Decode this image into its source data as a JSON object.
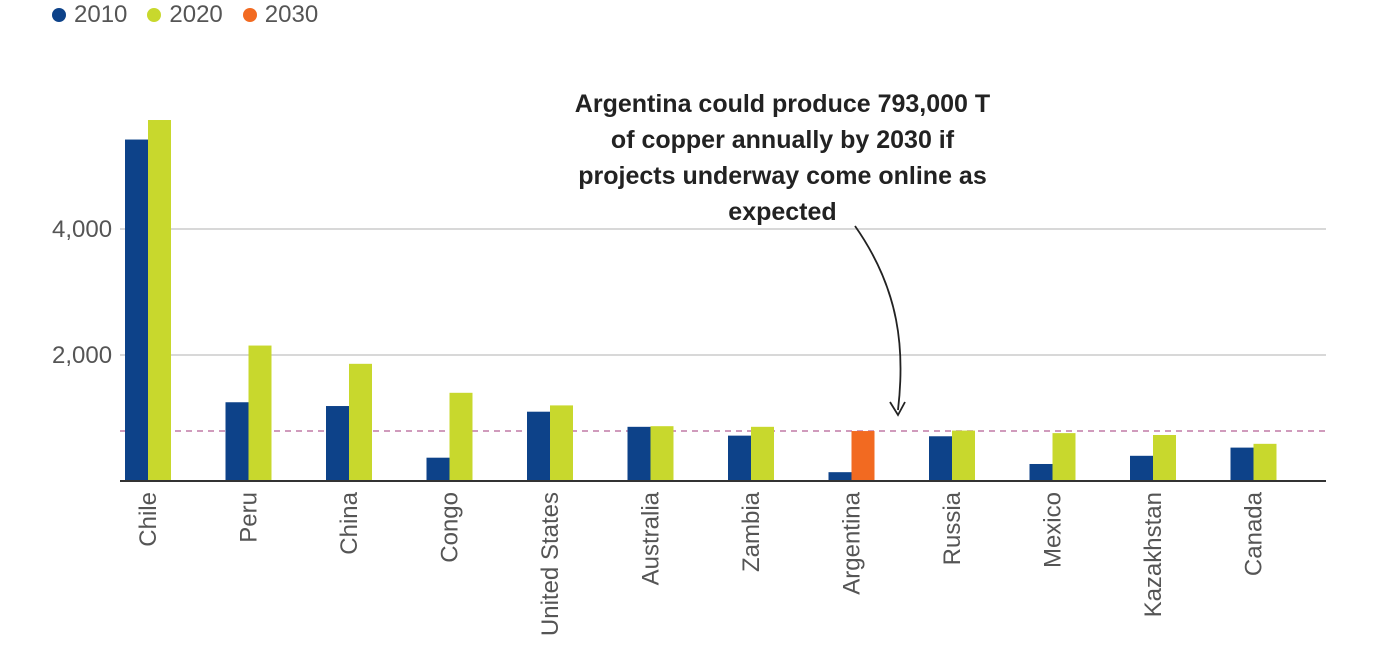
{
  "chart_data": {
    "type": "bar",
    "categories": [
      "Chile",
      "Peru",
      "China",
      "Congo",
      "United States",
      "Australia",
      "Zambia",
      "Argentina",
      "Russia",
      "Mexico",
      "Kazakhstan",
      "Canada"
    ],
    "series": [
      {
        "name": "2010",
        "color": "#0d4289",
        "values": [
          5420,
          1250,
          1190,
          370,
          1100,
          860,
          720,
          140,
          710,
          270,
          400,
          530
        ]
      },
      {
        "name": "2020",
        "color": "#c8d82d",
        "values": [
          5730,
          2150,
          1860,
          1400,
          1200,
          870,
          860,
          null,
          800,
          760,
          730,
          590
        ]
      },
      {
        "name": "2030",
        "color": "#f26a21",
        "values": [
          null,
          null,
          null,
          null,
          null,
          null,
          null,
          793,
          null,
          null,
          null,
          null
        ]
      }
    ],
    "y_ticks": [
      2000,
      4000
    ],
    "y_tick_labels": [
      "2,000",
      "4,000"
    ],
    "ylim": [
      0,
      7000
    ],
    "reference_line": {
      "value": 793,
      "color": "#c07aa6",
      "style": "dashed"
    },
    "annotation": "Argentina could produce 793,000 T of copper annually by 2030 if projects underway come online as expected",
    "grid": true,
    "legend_position": "top-left",
    "title": "",
    "xlabel": "",
    "ylabel": ""
  }
}
